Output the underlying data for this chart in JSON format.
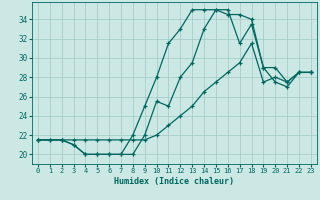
{
  "xlabel": "Humidex (Indice chaleur)",
  "bg_color": "#cce8e4",
  "grid_color": "#a0c8c4",
  "line_color": "#006660",
  "xlim": [
    -0.5,
    23.5
  ],
  "ylim": [
    19.0,
    35.8
  ],
  "xticks": [
    0,
    1,
    2,
    3,
    4,
    5,
    6,
    7,
    8,
    9,
    10,
    11,
    12,
    13,
    14,
    15,
    16,
    17,
    18,
    19,
    20,
    21,
    22,
    23
  ],
  "yticks": [
    20,
    22,
    24,
    26,
    28,
    30,
    32,
    34
  ],
  "line1_x": [
    0,
    1,
    2,
    3,
    4,
    5,
    6,
    7,
    8,
    9,
    10,
    11,
    12,
    13,
    14,
    15,
    16,
    17,
    18,
    19,
    20,
    21,
    22,
    23
  ],
  "line1_y": [
    21.5,
    21.5,
    21.5,
    21.5,
    21.5,
    21.5,
    21.5,
    21.5,
    21.5,
    21.5,
    22.0,
    23.0,
    24.0,
    25.0,
    26.5,
    27.5,
    28.5,
    29.5,
    31.5,
    27.5,
    28.0,
    27.5,
    28.5,
    28.5
  ],
  "line2_x": [
    0,
    1,
    2,
    3,
    4,
    5,
    6,
    7,
    8,
    9,
    10,
    11,
    12,
    13,
    14,
    15,
    16,
    17,
    18,
    19,
    20,
    21,
    22,
    23
  ],
  "line2_y": [
    21.5,
    21.5,
    21.5,
    21.0,
    20.0,
    20.0,
    20.0,
    20.0,
    22.0,
    25.0,
    28.0,
    31.5,
    33.0,
    35.0,
    35.0,
    35.0,
    34.5,
    34.5,
    34.0,
    29.0,
    29.0,
    27.5,
    28.5,
    28.5
  ],
  "line3_x": [
    0,
    2,
    3,
    4,
    5,
    6,
    7,
    8,
    9,
    10,
    11,
    12,
    13,
    14,
    15,
    16,
    17,
    18,
    19,
    20,
    21,
    22,
    23
  ],
  "line3_y": [
    21.5,
    21.5,
    21.0,
    20.0,
    20.0,
    20.0,
    20.0,
    20.0,
    22.0,
    25.5,
    25.0,
    28.0,
    29.5,
    33.0,
    35.0,
    35.0,
    31.5,
    33.5,
    29.0,
    27.5,
    27.0,
    28.5,
    28.5
  ]
}
